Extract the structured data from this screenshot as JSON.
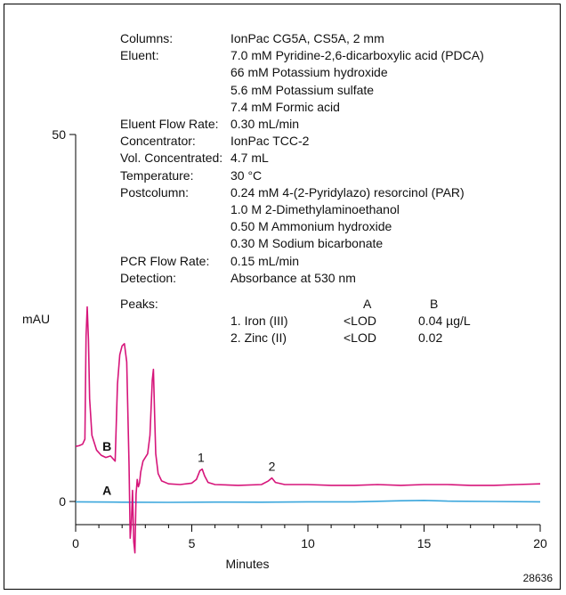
{
  "chart_data": {
    "type": "line",
    "xlabel": "Minutes",
    "ylabel": "mAU",
    "xlim": [
      0,
      20
    ],
    "ylim": [
      0,
      50
    ],
    "x_ticks": [
      "0",
      "5",
      "10",
      "15",
      "20"
    ],
    "y_ticks": [
      "0",
      "50"
    ],
    "grid": false,
    "series": [
      {
        "name": "B",
        "color": "#d6157a",
        "x": [
          0,
          0.15,
          0.3,
          0.4,
          0.45,
          0.5,
          0.55,
          0.6,
          0.7,
          0.9,
          1.1,
          1.3,
          1.5,
          1.7,
          1.8,
          1.9,
          2.0,
          2.1,
          2.2,
          2.3,
          2.35,
          2.4,
          2.45,
          2.5,
          2.55,
          2.6,
          2.65,
          2.7,
          2.75,
          2.8,
          2.9,
          3.0,
          3.1,
          3.2,
          3.3,
          3.35,
          3.4,
          3.45,
          3.55,
          3.7,
          4.0,
          4.5,
          5.0,
          5.2,
          5.35,
          5.45,
          5.55,
          5.7,
          6.0,
          7.0,
          8.0,
          8.3,
          8.45,
          8.6,
          9.0,
          10.0,
          11.0,
          12.0,
          13.0,
          14.0,
          15.0,
          16.0,
          17.0,
          18.0,
          19.0,
          20.0
        ],
        "y": [
          7.5,
          7.6,
          7.8,
          8.5,
          22.5,
          26.5,
          22.0,
          14.0,
          9.0,
          7.0,
          6.3,
          6.0,
          6.2,
          5.5,
          16.0,
          20.0,
          21.2,
          21.5,
          19.0,
          5.0,
          -5.0,
          -3.0,
          1.5,
          -5.5,
          -7.0,
          1.0,
          3.0,
          2.0,
          2.5,
          4.0,
          5.5,
          6.0,
          6.5,
          9.0,
          16.5,
          18.0,
          12.0,
          6.5,
          3.8,
          2.8,
          2.4,
          2.3,
          2.5,
          3.0,
          4.2,
          4.4,
          3.5,
          2.6,
          2.3,
          2.2,
          2.3,
          2.8,
          3.2,
          2.6,
          2.3,
          2.3,
          2.2,
          2.2,
          2.3,
          2.2,
          2.3,
          2.3,
          2.2,
          2.2,
          2.3,
          2.4
        ]
      },
      {
        "name": "A",
        "color": "#3aa6dc",
        "x": [
          0,
          2,
          4,
          6,
          8,
          10,
          12,
          14,
          15,
          16,
          18,
          20
        ],
        "y": [
          -0.05,
          -0.1,
          -0.12,
          -0.08,
          -0.1,
          -0.05,
          -0.05,
          0.1,
          0.15,
          0.05,
          0.0,
          -0.05
        ]
      }
    ],
    "peak_labels": [
      {
        "text": "1",
        "x": 5.4,
        "y": 4.4
      },
      {
        "text": "2",
        "x": 8.45,
        "y": 3.2
      }
    ],
    "series_labels": [
      {
        "text": "B",
        "x": 1.35,
        "y": 6.2
      },
      {
        "text": "A",
        "x": 1.35,
        "y": 0.2
      }
    ],
    "figure_id": "28636"
  },
  "info": {
    "rows": [
      {
        "label": "Columns:",
        "value": "IonPac CG5A, CS5A, 2 mm"
      },
      {
        "label": "Eluent:",
        "value": "7.0 mM Pyridine-2,6-dicarboxylic acid (PDCA)"
      },
      {
        "label": "",
        "value": "66 mM Potassium hydroxide"
      },
      {
        "label": "",
        "value": "5.6 mM Potassium sulfate"
      },
      {
        "label": "",
        "value": "7.4 mM Formic acid"
      },
      {
        "label": "Eluent Flow Rate:",
        "value": "0.30 mL/min"
      },
      {
        "label": "Concentrator:",
        "value": "IonPac TCC-2"
      },
      {
        "label": "Vol. Concentrated:",
        "value": "4.7 mL"
      },
      {
        "label": "Temperature:",
        "value": "30 °C"
      },
      {
        "label": "Postcolumn:",
        "value": "0.24 mM 4-(2-Pyridylazo) resorcinol (PAR)"
      },
      {
        "label": "",
        "value": "1.0 M 2-Dimethylaminoethanol"
      },
      {
        "label": "",
        "value": "0.50 M Ammonium hydroxide"
      },
      {
        "label": "",
        "value": "0.30 M Sodium bicarbonate"
      },
      {
        "label": "PCR Flow Rate:",
        "value": "0.15 mL/min"
      },
      {
        "label": "Detection:",
        "value": "Absorbance at 530 nm"
      }
    ],
    "peaks": {
      "label": "Peaks:",
      "col_a": "A",
      "col_b": "B",
      "rows": [
        {
          "name": "1. Iron (III)",
          "a": "<LOD",
          "b": "0.04 µg/L"
        },
        {
          "name": "2. Zinc (II)",
          "a": "<LOD",
          "b": "0.02"
        }
      ]
    }
  }
}
